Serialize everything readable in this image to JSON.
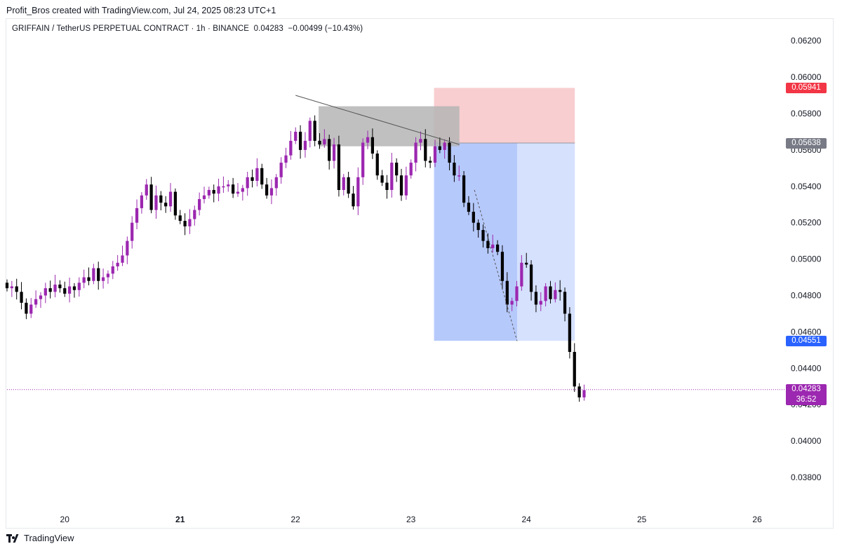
{
  "header": {
    "credit": "Profit_Bros created with TradingView.com, Jul 24, 2025 08:23 UTC+1"
  },
  "symbol_line": {
    "name": "GRIFFAIN / TetherUS PERPETUAL CONTRACT · 1h · BINANCE",
    "price": "0.04283",
    "change": "−0.00499 (−10.43%)"
  },
  "footer": {
    "brand": "TradingView"
  },
  "colors": {
    "bull": "#9c27b0",
    "bear": "#000000",
    "stop_zone": "#f7c5c8",
    "target_zone": "#b2c6fb",
    "target_zone_light": "#d3dffd",
    "supply_zone": "#b5b5b5",
    "stop_tag": "#f23645",
    "entry_tag": "#787b86",
    "target_tag": "#2962ff",
    "last_tag": "#9c27b0"
  },
  "price_tags": {
    "stop": "0.05941",
    "entry": "0.05638",
    "target": "0.04551",
    "last": "0.04283",
    "countdown": "36:52"
  },
  "chart_data": {
    "type": "candlestick",
    "interval": "1h",
    "y_axis_position": "right",
    "ylim": [
      0.0365,
      0.0632
    ],
    "y_ticks": [
      "0.06200",
      "0.06000",
      "0.05800",
      "0.05600",
      "0.05400",
      "0.05200",
      "0.05000",
      "0.04800",
      "0.04600",
      "0.04400",
      "0.04200",
      "0.04000",
      "0.03800"
    ],
    "x_ticks": [
      {
        "label": "20",
        "day": 20,
        "bold": false
      },
      {
        "label": "21",
        "day": 21,
        "bold": true
      },
      {
        "label": "22",
        "day": 22,
        "bold": false
      },
      {
        "label": "23",
        "day": 23,
        "bold": false
      },
      {
        "label": "24",
        "day": 24,
        "bold": false
      },
      {
        "label": "25",
        "day": 25,
        "bold": false
      },
      {
        "label": "26",
        "day": 26,
        "bold": false
      }
    ],
    "xlim_days": [
      19.5,
      26.2
    ],
    "candle_start_day": 19.5,
    "candle_step_days": 0.04167,
    "close_path": [
      0.0484,
      0.0485,
      0.0482,
      0.0476,
      0.047,
      0.0475,
      0.0478,
      0.048,
      0.0484,
      0.0482,
      0.0486,
      0.0484,
      0.0481,
      0.0485,
      0.0483,
      0.0487,
      0.049,
      0.0488,
      0.0495,
      0.0488,
      0.049,
      0.0492,
      0.0496,
      0.0498,
      0.0502,
      0.051,
      0.052,
      0.0528,
      0.0535,
      0.0541,
      0.0527,
      0.0535,
      0.0531,
      0.0529,
      0.0537,
      0.0524,
      0.0521,
      0.0518,
      0.0522,
      0.0527,
      0.0533,
      0.0535,
      0.0538,
      0.0536,
      0.054,
      0.054,
      0.0541,
      0.0536,
      0.0537,
      0.0539,
      0.0545,
      0.0543,
      0.055,
      0.0541,
      0.0535,
      0.0539,
      0.0545,
      0.0553,
      0.0557,
      0.0565,
      0.057,
      0.056,
      0.0565,
      0.0576,
      0.0565,
      0.0563,
      0.0566,
      0.0554,
      0.0563,
      0.0538,
      0.0545,
      0.0536,
      0.0529,
      0.0545,
      0.0564,
      0.0567,
      0.0558,
      0.0546,
      0.0542,
      0.0538,
      0.0553,
      0.0546,
      0.0535,
      0.0546,
      0.0553,
      0.0564,
      0.0566,
      0.0554,
      0.0553,
      0.0562,
      0.056,
      0.0564,
      0.0553,
      0.0546,
      0.0546,
      0.0531,
      0.0526,
      0.052,
      0.0516,
      0.051,
      0.0506,
      0.0508,
      0.0504,
      0.0488,
      0.0475,
      0.0477,
      0.0485,
      0.0498,
      0.0497,
      0.0482,
      0.0475,
      0.0477,
      0.0485,
      0.0478,
      0.0483,
      0.0482,
      0.047,
      0.0449,
      0.043,
      0.0424,
      0.0428
    ],
    "annotations": {
      "short_position": {
        "entry": 0.05638,
        "stop": 0.05941,
        "target": 0.04551,
        "start_day": 23.2,
        "end_day": 24.42
      },
      "supply_zone": {
        "top": 0.0584,
        "bottom": 0.0562,
        "start_day": 22.2,
        "end_day": 23.42
      },
      "trendline": {
        "from_day": 22.0,
        "from_price": 0.059,
        "to_day": 23.42,
        "to_price": 0.0563
      },
      "projection": {
        "from_day": 23.55,
        "from_price": 0.0538,
        "to_day": 23.92,
        "to_price": 0.0455
      }
    }
  }
}
